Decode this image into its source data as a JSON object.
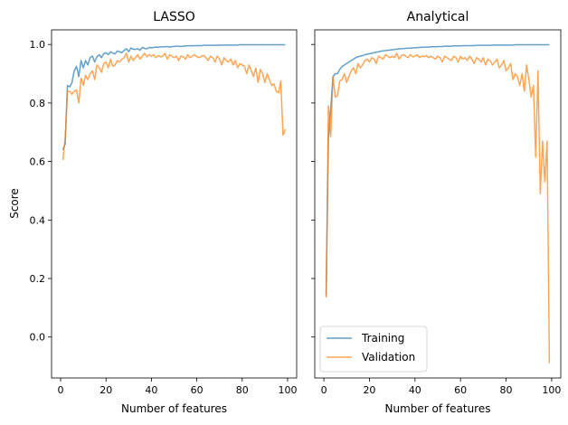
{
  "figure": {
    "colors": {
      "training": "#1f77b4",
      "validation": "#ff7f0e"
    },
    "ylabel": "Score",
    "legend": {
      "location": "lower-left",
      "panel": "Analytical",
      "entries": [
        "Training",
        "Validation"
      ]
    }
  },
  "chart_data": [
    {
      "type": "line",
      "title": "LASSO",
      "xlabel": "Number of features",
      "ylabel": "Score",
      "xlim": [
        -4,
        104
      ],
      "ylim": [
        -0.14,
        1.05
      ],
      "xticks": [
        0,
        20,
        40,
        60,
        80,
        100
      ],
      "yticks": [
        0.0,
        0.2,
        0.4,
        0.6,
        0.8,
        1.0
      ],
      "ytick_labels": [
        "0.0",
        "0.2",
        "0.4",
        "0.6",
        "0.8",
        "1.0"
      ],
      "grid": false,
      "x": [
        1,
        2,
        3,
        4,
        5,
        6,
        7,
        8,
        9,
        10,
        11,
        12,
        13,
        14,
        15,
        16,
        17,
        18,
        19,
        20,
        21,
        22,
        23,
        24,
        25,
        26,
        27,
        28,
        29,
        30,
        31,
        32,
        33,
        34,
        35,
        36,
        37,
        38,
        39,
        40,
        41,
        42,
        43,
        44,
        45,
        46,
        47,
        48,
        49,
        50,
        51,
        52,
        53,
        54,
        55,
        56,
        57,
        58,
        59,
        60,
        61,
        62,
        63,
        64,
        65,
        66,
        67,
        68,
        69,
        70,
        71,
        72,
        73,
        74,
        75,
        76,
        77,
        78,
        79,
        80,
        81,
        82,
        83,
        84,
        85,
        86,
        87,
        88,
        89,
        90,
        91,
        92,
        93,
        94,
        95,
        96,
        97,
        98,
        99
      ],
      "series": [
        {
          "name": "Training",
          "values": [
            0.64,
            0.66,
            0.86,
            0.855,
            0.87,
            0.91,
            0.925,
            0.89,
            0.945,
            0.92,
            0.945,
            0.93,
            0.955,
            0.96,
            0.94,
            0.958,
            0.965,
            0.955,
            0.968,
            0.972,
            0.965,
            0.975,
            0.97,
            0.968,
            0.978,
            0.975,
            0.972,
            0.98,
            0.985,
            0.975,
            0.988,
            0.984,
            0.983,
            0.986,
            0.98,
            0.99,
            0.986,
            0.985,
            0.99,
            0.988,
            0.99,
            0.991,
            0.99,
            0.992,
            0.992,
            0.992,
            0.993,
            0.991,
            0.993,
            0.993,
            0.994,
            0.994,
            0.993,
            0.994,
            0.995,
            0.995,
            0.996,
            0.995,
            0.996,
            0.996,
            0.996,
            0.996,
            0.997,
            0.997,
            0.997,
            0.997,
            0.997,
            0.997,
            0.998,
            0.997,
            0.998,
            0.998,
            0.998,
            0.998,
            0.998,
            0.998,
            0.998,
            0.998,
            0.999,
            0.999,
            0.999,
            0.999,
            0.999,
            0.999,
            0.999,
            0.999,
            0.999,
            0.999,
            0.999,
            0.999,
            0.999,
            0.999,
            0.999,
            0.999,
            0.999,
            0.999,
            0.999,
            0.999,
            0.999
          ]
        },
        {
          "name": "Validation",
          "values": [
            0.605,
            0.68,
            0.84,
            0.84,
            0.83,
            0.84,
            0.845,
            0.8,
            0.885,
            0.86,
            0.895,
            0.88,
            0.9,
            0.91,
            0.88,
            0.93,
            0.92,
            0.905,
            0.935,
            0.94,
            0.92,
            0.95,
            0.925,
            0.93,
            0.945,
            0.94,
            0.95,
            0.955,
            0.97,
            0.94,
            0.96,
            0.945,
            0.955,
            0.965,
            0.95,
            0.96,
            0.97,
            0.958,
            0.965,
            0.96,
            0.965,
            0.955,
            0.962,
            0.958,
            0.96,
            0.97,
            0.95,
            0.965,
            0.96,
            0.955,
            0.96,
            0.945,
            0.96,
            0.958,
            0.95,
            0.965,
            0.955,
            0.96,
            0.965,
            0.958,
            0.955,
            0.96,
            0.962,
            0.955,
            0.945,
            0.96,
            0.955,
            0.94,
            0.96,
            0.95,
            0.93,
            0.955,
            0.945,
            0.94,
            0.95,
            0.93,
            0.945,
            0.92,
            0.935,
            0.93,
            0.925,
            0.9,
            0.93,
            0.91,
            0.89,
            0.92,
            0.87,
            0.915,
            0.9,
            0.87,
            0.9,
            0.88,
            0.86,
            0.865,
            0.84,
            0.835,
            0.875,
            0.69,
            0.71
          ]
        }
      ]
    },
    {
      "type": "line",
      "title": "Analytical",
      "xlabel": "Number of features",
      "ylabel": "",
      "xlim": [
        -4,
        104
      ],
      "ylim": [
        -0.14,
        1.05
      ],
      "xticks": [
        0,
        20,
        40,
        60,
        80,
        100
      ],
      "yticks": [
        0.0,
        0.2,
        0.4,
        0.6,
        0.8,
        1.0
      ],
      "ytick_labels": [],
      "grid": false,
      "x": [
        1,
        2,
        3,
        4,
        5,
        6,
        7,
        8,
        9,
        10,
        11,
        12,
        13,
        14,
        15,
        16,
        17,
        18,
        19,
        20,
        21,
        22,
        23,
        24,
        25,
        26,
        27,
        28,
        29,
        30,
        31,
        32,
        33,
        34,
        35,
        36,
        37,
        38,
        39,
        40,
        41,
        42,
        43,
        44,
        45,
        46,
        47,
        48,
        49,
        50,
        51,
        52,
        53,
        54,
        55,
        56,
        57,
        58,
        59,
        60,
        61,
        62,
        63,
        64,
        65,
        66,
        67,
        68,
        69,
        70,
        71,
        72,
        73,
        74,
        75,
        76,
        77,
        78,
        79,
        80,
        81,
        82,
        83,
        84,
        85,
        86,
        87,
        88,
        89,
        90,
        91,
        92,
        93,
        94,
        95,
        96,
        97,
        98,
        99
      ],
      "series": [
        {
          "name": "Training",
          "values": [
            0.14,
            0.68,
            0.78,
            0.89,
            0.9,
            0.9,
            0.915,
            0.925,
            0.93,
            0.935,
            0.94,
            0.945,
            0.95,
            0.955,
            0.958,
            0.96,
            0.962,
            0.965,
            0.967,
            0.968,
            0.97,
            0.972,
            0.974,
            0.975,
            0.977,
            0.978,
            0.979,
            0.98,
            0.981,
            0.982,
            0.983,
            0.984,
            0.985,
            0.985,
            0.986,
            0.987,
            0.987,
            0.988,
            0.988,
            0.989,
            0.989,
            0.99,
            0.99,
            0.991,
            0.991,
            0.991,
            0.992,
            0.992,
            0.992,
            0.993,
            0.993,
            0.993,
            0.994,
            0.994,
            0.994,
            0.994,
            0.995,
            0.995,
            0.995,
            0.995,
            0.996,
            0.996,
            0.996,
            0.996,
            0.996,
            0.996,
            0.997,
            0.997,
            0.997,
            0.997,
            0.997,
            0.997,
            0.997,
            0.998,
            0.998,
            0.998,
            0.998,
            0.998,
            0.998,
            0.998,
            0.998,
            0.998,
            0.998,
            0.999,
            0.999,
            0.999,
            0.999,
            0.999,
            0.999,
            0.999,
            0.999,
            0.999,
            0.999,
            0.999,
            0.999,
            0.999,
            0.999,
            0.999,
            0.999
          ]
        },
        {
          "name": "Validation",
          "values": [
            0.135,
            0.79,
            0.685,
            0.89,
            0.82,
            0.825,
            0.875,
            0.88,
            0.9,
            0.87,
            0.89,
            0.91,
            0.92,
            0.9,
            0.935,
            0.92,
            0.93,
            0.945,
            0.95,
            0.94,
            0.955,
            0.95,
            0.935,
            0.96,
            0.955,
            0.95,
            0.965,
            0.96,
            0.955,
            0.96,
            0.955,
            0.97,
            0.95,
            0.962,
            0.965,
            0.96,
            0.955,
            0.965,
            0.958,
            0.96,
            0.965,
            0.955,
            0.96,
            0.958,
            0.962,
            0.955,
            0.96,
            0.955,
            0.95,
            0.96,
            0.955,
            0.94,
            0.96,
            0.955,
            0.95,
            0.945,
            0.96,
            0.955,
            0.94,
            0.96,
            0.95,
            0.955,
            0.945,
            0.96,
            0.95,
            0.935,
            0.955,
            0.95,
            0.94,
            0.955,
            0.93,
            0.95,
            0.945,
            0.93,
            0.94,
            0.95,
            0.92,
            0.93,
            0.945,
            0.91,
            0.92,
            0.935,
            0.88,
            0.9,
            0.89,
            0.86,
            0.9,
            0.84,
            0.93,
            0.88,
            0.82,
            0.86,
            0.615,
            0.91,
            0.49,
            0.67,
            0.53,
            0.67,
            -0.09
          ]
        }
      ]
    }
  ]
}
